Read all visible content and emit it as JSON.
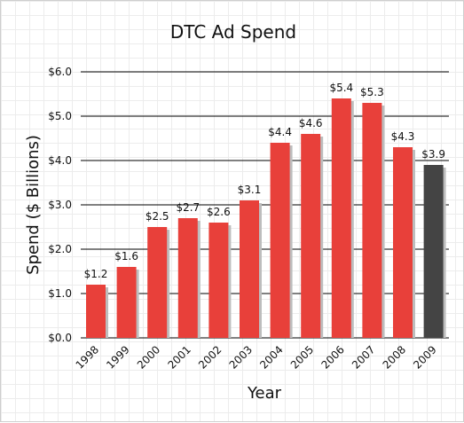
{
  "chart_data": {
    "type": "bar",
    "title": "DTC Ad Spend",
    "xlabel": "Year",
    "ylabel": "Spend ($ Billions)",
    "categories": [
      "1998",
      "1999",
      "2000",
      "2001",
      "2002",
      "2003",
      "2004",
      "2005",
      "2006",
      "2007",
      "2008",
      "2009"
    ],
    "values": [
      1.2,
      1.6,
      2.5,
      2.7,
      2.6,
      3.1,
      4.4,
      4.6,
      5.4,
      5.3,
      4.3,
      3.9
    ],
    "data_labels": [
      "$1.2",
      "$1.6",
      "$2.5",
      "$2.7",
      "$2.6",
      "$3.1",
      "$4.4",
      "$4.6",
      "$5.4",
      "$5.3",
      "$4.3",
      "$3.9"
    ],
    "ylim": [
      0,
      6
    ],
    "y_ticks": [
      0,
      1,
      2,
      3,
      4,
      5,
      6
    ],
    "y_tick_labels": [
      "$0.0",
      "$1.0",
      "$2.0",
      "$3.0",
      "$4.0",
      "$5.0",
      "$6.0"
    ],
    "grid": true,
    "legend": "none",
    "colors": {
      "bar": "#e8403a",
      "highlight_bar": "#444444",
      "shadow": "#bdbdbd",
      "gridline": "#000000"
    },
    "highlight_index": 11
  }
}
